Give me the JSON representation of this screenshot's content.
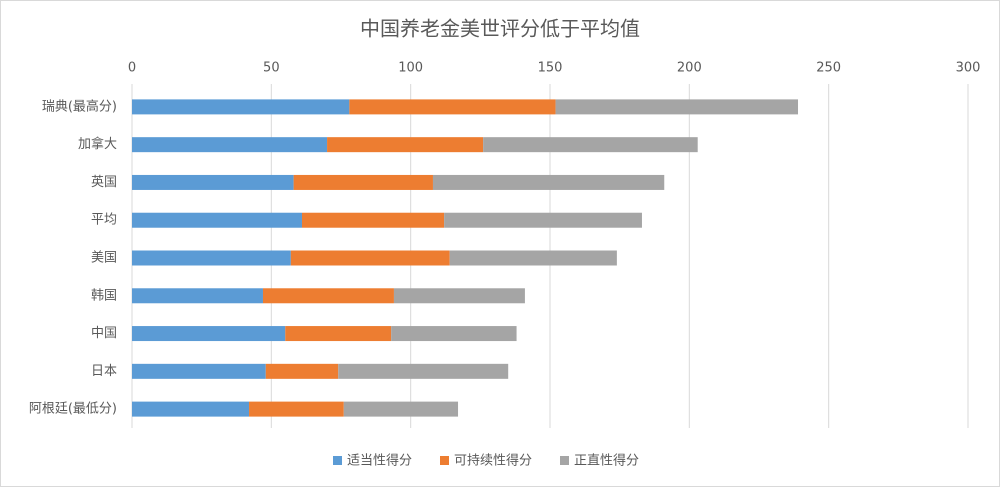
{
  "chart_data": {
    "type": "bar",
    "orientation": "horizontal",
    "stacked": true,
    "title": "中国养老金美世评分低于平均值",
    "categories": [
      "瑞典(最高分)",
      "加拿大",
      "英国",
      "平均",
      "美国",
      "韩国",
      "中国",
      "日本",
      "阿根廷(最低分)"
    ],
    "series": [
      {
        "name": "适当性得分",
        "color": "#5b9bd5",
        "values": [
          78,
          70,
          58,
          61,
          57,
          47,
          55,
          48,
          42
        ]
      },
      {
        "name": "可持续性得分",
        "color": "#ed7d31",
        "values": [
          74,
          56,
          50,
          51,
          57,
          47,
          38,
          26,
          34
        ]
      },
      {
        "name": "正直性得分",
        "color": "#a5a5a5",
        "values": [
          87,
          77,
          83,
          71,
          60,
          47,
          45,
          61,
          41
        ]
      }
    ],
    "xlim": [
      0,
      300
    ],
    "xticks": [
      0,
      50,
      100,
      150,
      200,
      250,
      300
    ],
    "grid": true,
    "legend": "bottom"
  }
}
